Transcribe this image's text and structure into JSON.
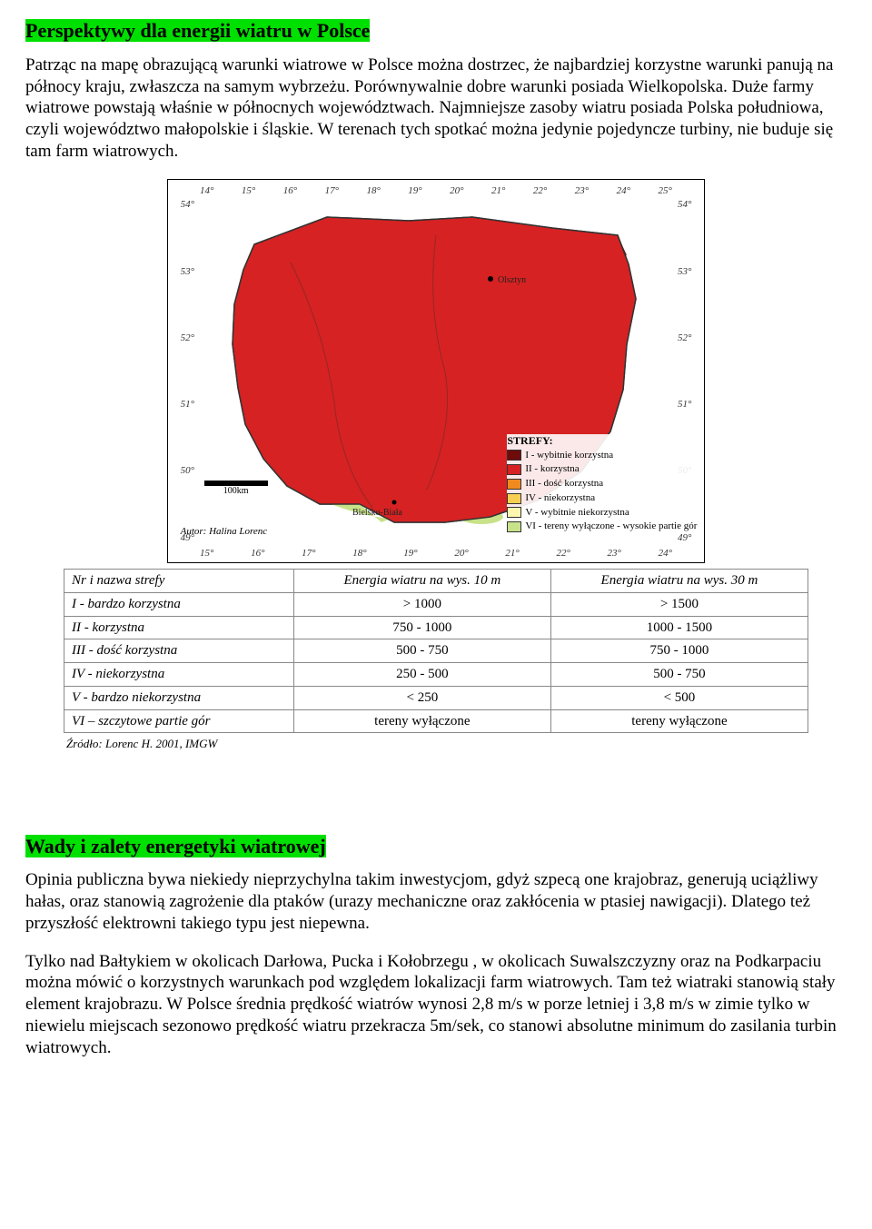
{
  "section1": {
    "title": "Perspektywy dla energii wiatru w Polsce",
    "para": "Patrząc na mapę obrazującą warunki wiatrowe w Polsce można dostrzec, że najbardziej korzystne warunki panują na północy kraju, zwłaszcza na samym wybrzeżu. Porównywalnie dobre warunki posiada Wielkopolska. Duże farmy wiatrowe powstają właśnie w północnych województwach. Najmniejsze zasoby wiatru posiada Polska południowa, czyli województwo małopolskie i śląskie. W terenach tych spotkać można jedynie pojedyncze turbiny, nie buduje się tam farm wiatrowych."
  },
  "map": {
    "lon_labels": [
      "14°",
      "15°",
      "16°",
      "17°",
      "18°",
      "19°",
      "20°",
      "21°",
      "22°",
      "23°",
      "24°",
      "25°"
    ],
    "lat_labels": [
      "54°",
      "53°",
      "52°",
      "51°",
      "50°",
      "49°"
    ],
    "lon_labels_bot": [
      "15°",
      "16°",
      "17°",
      "18°",
      "19°",
      "20°",
      "21°",
      "22°",
      "23°",
      "24°"
    ],
    "scale_label": "100km",
    "author": "Autor: Halina Lorenc",
    "city_olsztyn": "Olsztyn",
    "city_bielsko": "Bielsko-Biała",
    "colors": {
      "zone1": "#6e0b0b",
      "zone2": "#d62222",
      "zone3": "#ef8a1f",
      "zone4": "#f6cf52",
      "zone5": "#fdf7b0",
      "zone6": "#c8e28a",
      "border": "#333333",
      "grid": "#888888"
    },
    "legend": {
      "title": "STREFY:",
      "items": [
        {
          "label": "I - wybitnie korzystna"
        },
        {
          "label": "II - korzystna"
        },
        {
          "label": "III - dość korzystna"
        },
        {
          "label": "IV - niekorzystna"
        },
        {
          "label": "V - wybitnie niekorzystna"
        },
        {
          "label": "VI - tereny wyłączone - wysokie partie gór"
        }
      ]
    }
  },
  "table": {
    "headers": [
      "Nr i nazwa strefy",
      "Energia wiatru na wys. 10 m",
      "Energia wiatru na wys. 30 m"
    ],
    "rows": [
      [
        "I - bardzo korzystna",
        "> 1000",
        "> 1500"
      ],
      [
        "II - korzystna",
        "750 - 1000",
        "1000 - 1500"
      ],
      [
        "III - dość korzystna",
        "500 - 750",
        "750 - 1000"
      ],
      [
        "IV - niekorzystna",
        "250 - 500",
        "500 - 750"
      ],
      [
        "V - bardzo niekorzystna",
        "< 250",
        "< 500"
      ],
      [
        "VI – szczytowe partie gór",
        "tereny wyłączone",
        "tereny wyłączone"
      ]
    ],
    "source": "Źródło: Lorenc H. 2001, IMGW"
  },
  "section2": {
    "title": "Wady i zalety energetyki wiatrowej",
    "para1": "Opinia publiczna bywa niekiedy nieprzychylna takim inwestycjom, gdyż szpecą one krajobraz, generują uciążliwy hałas, oraz stanowią zagrożenie dla ptaków (urazy mechaniczne oraz zakłócenia w ptasiej nawigacji). Dlatego też przyszłość elektrowni takiego typu jest niepewna.",
    "para2": "Tylko nad Bałtykiem w okolicach Darłowa, Pucka i Kołobrzegu , w okolicach Suwalszczyzny oraz na Podkarpaciu można mówić o korzystnych warunkach pod względem lokalizacji farm wiatrowych. Tam też wiatraki stanowią stały element krajobrazu. W Polsce średnia prędkość wiatrów wynosi 2,8 m/s w porze letniej i 3,8 m/s w zimie tylko w niewielu miejscach sezonowo prędkość wiatru przekracza 5m/sek, co stanowi absolutne minimum do zasilania turbin wiatrowych."
  }
}
